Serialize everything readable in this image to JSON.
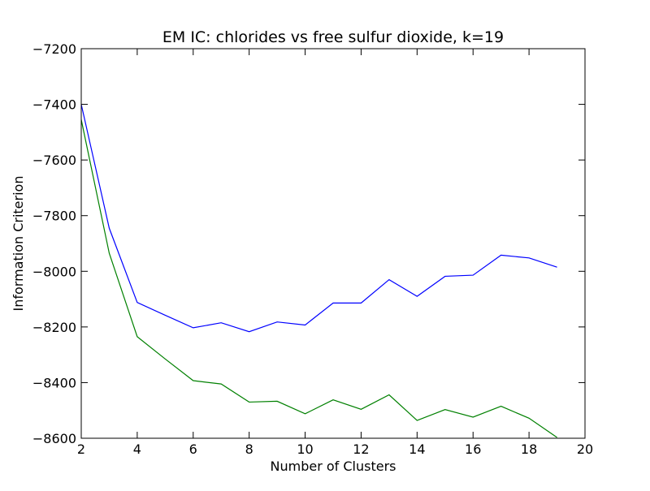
{
  "chart_data": {
    "type": "line",
    "title": "EM IC: chlorides vs free sulfur dioxide, k=19",
    "xlabel": "Number of Clusters",
    "ylabel": "Information Criterion",
    "xlim": [
      2,
      20
    ],
    "ylim": [
      -8600,
      -7200
    ],
    "xticks": [
      2,
      4,
      6,
      8,
      10,
      12,
      14,
      16,
      18,
      20
    ],
    "yticks": [
      -7200,
      -7400,
      -7600,
      -7800,
      -8000,
      -8200,
      -8400,
      -8600
    ],
    "xtick_labels": [
      "2",
      "4",
      "6",
      "8",
      "10",
      "12",
      "14",
      "16",
      "18",
      "20"
    ],
    "ytick_labels": [
      "−7200",
      "−7400",
      "−7600",
      "−7800",
      "−8000",
      "−8200",
      "−8400",
      "−8600"
    ],
    "grid": false,
    "legend": "none",
    "x": [
      2,
      3,
      4,
      5,
      6,
      7,
      8,
      9,
      10,
      11,
      12,
      13,
      14,
      15,
      16,
      17,
      18,
      19
    ],
    "series": [
      {
        "color": "#0000ff",
        "values": [
          -7400,
          -7845,
          -8112,
          -8158,
          -8203,
          -8185,
          -8217,
          -8182,
          -8193,
          -8114,
          -8114,
          -8030,
          -8090,
          -8018,
          -8014,
          -7942,
          -7952,
          -7985
        ]
      },
      {
        "color": "#008000",
        "values": [
          -7455,
          -7935,
          -8235,
          -8315,
          -8393,
          -8405,
          -8470,
          -8467,
          -8512,
          -8462,
          -8496,
          -8444,
          -8536,
          -8497,
          -8524,
          -8485,
          -8528,
          -8597
        ]
      }
    ]
  }
}
